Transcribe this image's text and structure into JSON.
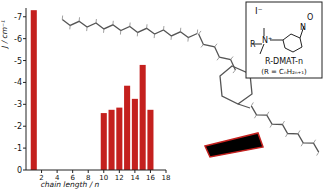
{
  "chart_data": {
    "type": "bar",
    "x_label": "chain length / n",
    "y_label": "J / cm⁻¹",
    "x": [
      1,
      10,
      11,
      12,
      13,
      14,
      15,
      16
    ],
    "values": [
      -7.3,
      -2.6,
      -2.75,
      -2.85,
      -3.85,
      -3.25,
      -4.8,
      -2.75
    ],
    "color": "#c4201e",
    "xlim": [
      0,
      18
    ],
    "xticks": [
      2,
      4,
      6,
      8,
      10,
      12,
      14,
      16,
      18
    ],
    "ylim": [
      0,
      -7.4
    ],
    "yticks": [
      0,
      -1,
      -2,
      -3,
      -4,
      -5,
      -6,
      -7
    ],
    "grid": false,
    "annotations": [
      "I⁻",
      "R",
      "N⁺",
      "N",
      "O",
      "R-DMAT-n",
      "(R = CₙH₂ₙ₊₁)"
    ]
  }
}
